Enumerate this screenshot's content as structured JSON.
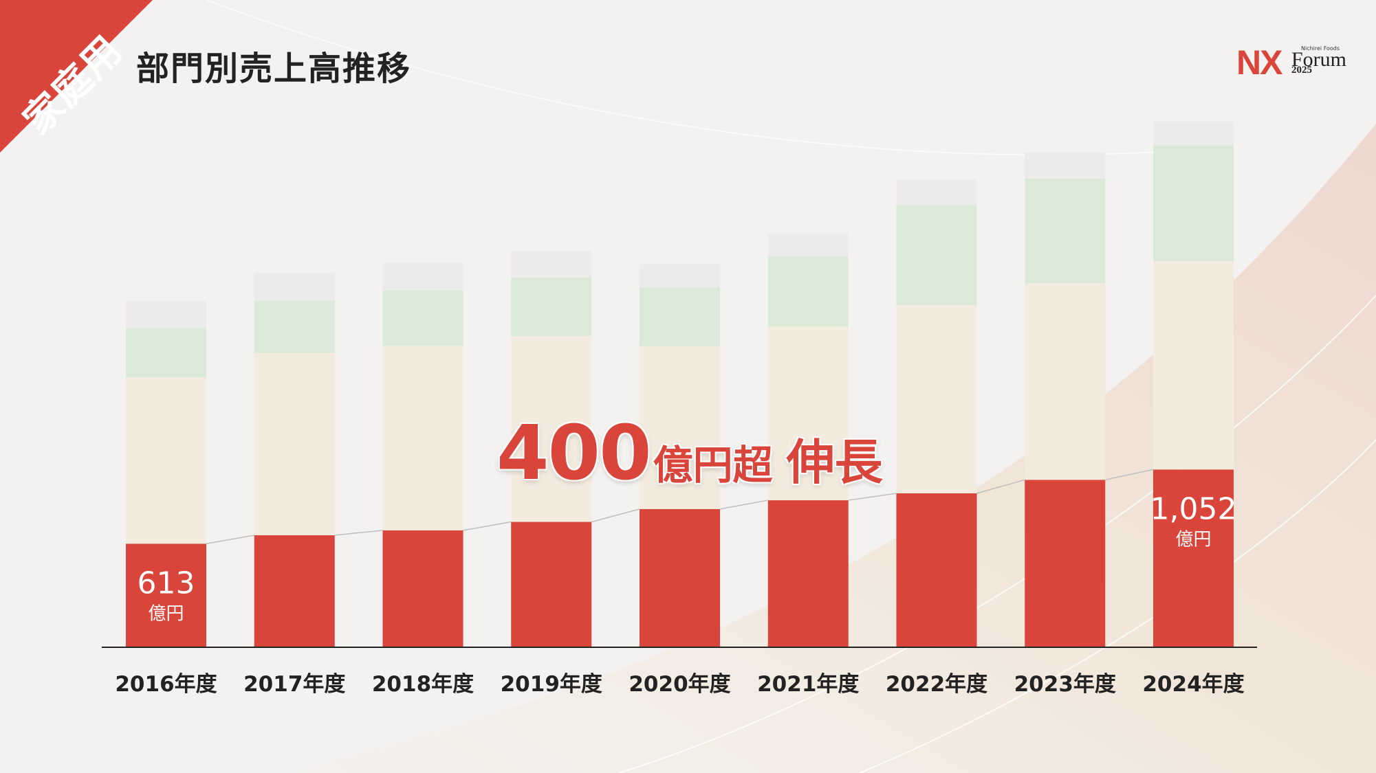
{
  "corner_label": "家庭用",
  "title": "部門別売上高推移",
  "logo": {
    "nx": "NX",
    "brand": "Nichirei Foods",
    "forum": "Forum",
    "year": "2025"
  },
  "headline": {
    "number": "400",
    "unit": "億円超",
    "rest": "伸長"
  },
  "colors": {
    "accent": "#d9453a",
    "bar_top": "#ebebea",
    "bar_green": "#dae9d8",
    "bar_beige": "#f3ebde",
    "axis": "#222222"
  },
  "chart_data": {
    "type": "bar",
    "stacked": true,
    "categories": [
      "2016年度",
      "2017年度",
      "2018年度",
      "2019年度",
      "2020年度",
      "2021年度",
      "2022年度",
      "2023年度",
      "2024年度"
    ],
    "series": [
      {
        "values": [
          613,
          663,
          692,
          742,
          818,
          870,
          911,
          991,
          1052
        ]
      },
      {
        "values": [
          984,
          1079,
          1092,
          1100,
          964,
          1029,
          1114,
          1163,
          1232
        ]
      },
      {
        "values": [
          290,
          309,
          330,
          346,
          347,
          413,
          592,
          620,
          688
        ]
      },
      {
        "values": [
          162,
          166,
          162,
          156,
          137,
          139,
          149,
          154,
          141
        ]
      }
    ],
    "data_labels": [
      {
        "category": "2016年度",
        "value": "613",
        "unit": "億円"
      },
      {
        "category": "2024年度",
        "value": "1,052",
        "unit": "億円"
      }
    ],
    "trend_line": "on bottom series",
    "grid": false,
    "legend": "none"
  }
}
